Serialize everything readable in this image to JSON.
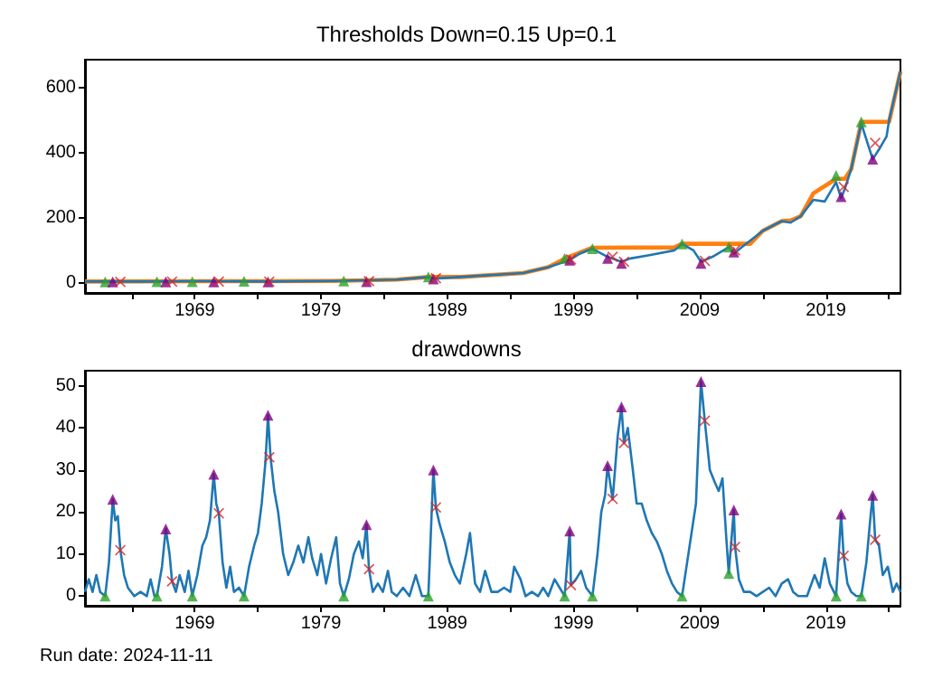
{
  "chart_data": [
    {
      "type": "line",
      "title": "Thresholds Down=0.15 Up=0.1",
      "xlim": [
        1960.3,
        2024.9
      ],
      "ylim": [
        -31,
        686
      ],
      "xticks": [
        {
          "value": 1964,
          "label": null
        },
        1969,
        {
          "value": 1974,
          "label": null
        },
        1979,
        {
          "value": 1984,
          "label": null
        },
        1989,
        {
          "value": 1994,
          "label": null
        },
        1999,
        {
          "value": 2004,
          "label": null
        },
        2009,
        {
          "value": 2014,
          "label": null
        },
        2019,
        {
          "value": 2024,
          "label": null
        }
      ],
      "yticks": [
        0,
        200,
        400,
        600
      ],
      "grid": false,
      "series": [
        {
          "color": "#1f77b4",
          "x": [
            1960.3,
            1965,
            1970,
            1975,
            1980,
            1985,
            1987.5,
            1988,
            1990,
            1995,
            1997,
            1998.7,
            1999.5,
            2000.5,
            2001.7,
            2002.8,
            2003.5,
            2005,
            2007,
            2007.6,
            2008.5,
            2009.1,
            2010,
            2011.3,
            2011.7,
            2012.5,
            2014,
            2015.5,
            2016.2,
            2017,
            2018,
            2018.9,
            2019.8,
            2020.2,
            2020.5,
            2021,
            2021.8,
            2022.7,
            2023.2,
            2023.8,
            2024,
            2024.9
          ],
          "values": [
            4,
            4,
            5,
            4,
            6,
            10,
            18,
            13,
            18,
            30,
            48,
            70,
            90,
            105,
            80,
            65,
            75,
            85,
            100,
            120,
            100,
            65,
            80,
            110,
            90,
            115,
            160,
            190,
            185,
            205,
            255,
            250,
            310,
            260,
            290,
            350,
            490,
            380,
            410,
            450,
            500,
            650
          ]
        },
        {
          "color": "#ff7f0e",
          "x": [
            1960.3,
            1970,
            1975,
            1980,
            1985,
            1987.5,
            1990,
            1995,
            1997,
            1998.5,
            2000.5,
            2007,
            2007.6,
            2013,
            2014,
            2015.5,
            2016.2,
            2017,
            2018,
            2019.8,
            2020.5,
            2021,
            2021.8,
            2024,
            2024.9
          ],
          "values": [
            4,
            5,
            5,
            6,
            10,
            18,
            18,
            30,
            48,
            78,
            108,
            109,
            120,
            120,
            160,
            190,
            192,
            205,
            275,
            320,
            320,
            350,
            495,
            495,
            650
          ]
        },
        {
          "type": "scatter",
          "color": "#2ca02c",
          "marker": "triangle",
          "x": [
            1961.9,
            1966,
            1968.8,
            1972.9,
            1980.8,
            1987.5,
            1998.3,
            2000.5,
            2007.6,
            2011.3,
            2019.8,
            2021.8
          ],
          "values": [
            3,
            4,
            4,
            5,
            6,
            18,
            75,
            105,
            120,
            110,
            330,
            495
          ]
        },
        {
          "type": "scatter",
          "color": "#800080",
          "marker": "triangle",
          "x": [
            1962.5,
            1966.7,
            1970.5,
            1974.8,
            1982.6,
            1987.9,
            1998.7,
            2001.7,
            2002.8,
            2009.1,
            2011.7,
            2020.2,
            2022.7
          ],
          "values": [
            3,
            3,
            3,
            3,
            4,
            12,
            70,
            75,
            60,
            60,
            95,
            265,
            380
          ]
        },
        {
          "type": "scatter",
          "color": "#d62728",
          "marker": "cross",
          "x": [
            1963.1,
            1967.2,
            1970.9,
            1974.9,
            1982.8,
            1988.1,
            1998.8,
            2002.1,
            2003,
            2009.4,
            2011.8,
            2020.4,
            2022.9
          ],
          "values": [
            3,
            4,
            4,
            4,
            5,
            14,
            72,
            80,
            65,
            68,
            100,
            295,
            430
          ]
        }
      ]
    },
    {
      "type": "line",
      "title": "drawdowns",
      "xlim": [
        1960.3,
        2024.9
      ],
      "ylim": [
        -2.3,
        53.6
      ],
      "xticks": [
        {
          "value": 1964,
          "label": null
        },
        1969,
        {
          "value": 1974,
          "label": null
        },
        1979,
        {
          "value": 1984,
          "label": null
        },
        1989,
        {
          "value": 1994,
          "label": null
        },
        1999,
        {
          "value": 2004,
          "label": null
        },
        2009,
        {
          "value": 2014,
          "label": null
        },
        2019,
        {
          "value": 2024,
          "label": null
        }
      ],
      "yticks": [
        0,
        10,
        20,
        30,
        40,
        50
      ],
      "grid": false,
      "annotations": [
        "Run date: 2024-11-11"
      ],
      "series": [
        {
          "color": "#1f77b4",
          "x": [
            1960.3,
            1960.6,
            1960.9,
            1961.2,
            1961.5,
            1961.9,
            1962.2,
            1962.5,
            1962.7,
            1962.9,
            1963.1,
            1963.4,
            1963.7,
            1964.2,
            1964.7,
            1965.2,
            1965.5,
            1965.8,
            1966,
            1966.4,
            1966.7,
            1967,
            1967.2,
            1967.5,
            1967.8,
            1968.2,
            1968.5,
            1968.8,
            1969.2,
            1969.6,
            1969.9,
            1970.2,
            1970.5,
            1970.7,
            1970.9,
            1971.2,
            1971.5,
            1971.8,
            1972.1,
            1972.5,
            1972.9,
            1973.3,
            1973.7,
            1974,
            1974.3,
            1974.6,
            1974.8,
            1975,
            1975.3,
            1975.6,
            1976,
            1976.4,
            1976.8,
            1977.2,
            1977.6,
            1978,
            1978.3,
            1978.7,
            1979,
            1979.4,
            1979.8,
            1980.2,
            1980.5,
            1980.8,
            1981.2,
            1981.6,
            1982,
            1982.3,
            1982.6,
            1982.8,
            1983.1,
            1983.5,
            1983.9,
            1984.3,
            1984.6,
            1985,
            1985.5,
            1986,
            1986.5,
            1987,
            1987.5,
            1987.9,
            1988.1,
            1988.4,
            1988.8,
            1989.2,
            1989.6,
            1990,
            1990.5,
            1990.8,
            1991.2,
            1991.6,
            1992,
            1992.5,
            1993,
            1993.5,
            1994,
            1994.3,
            1994.8,
            1995.2,
            1995.7,
            1996.2,
            1996.6,
            1997,
            1997.5,
            1997.9,
            1998.3,
            1998.7,
            1998.8,
            1999.2,
            1999.6,
            2000,
            2000.5,
            2000.9,
            2001.2,
            2001.5,
            2001.7,
            2002.1,
            2002.5,
            2002.8,
            2003,
            2003.3,
            2003.7,
            2004,
            2004.4,
            2004.8,
            2005.2,
            2005.6,
            2006,
            2006.4,
            2006.8,
            2007.2,
            2007.6,
            2008,
            2008.4,
            2008.7,
            2008.9,
            2009.1,
            2009.4,
            2009.8,
            2010.2,
            2010.5,
            2010.8,
            2011.1,
            2011.3,
            2011.7,
            2011.8,
            2012.1,
            2012.5,
            2013,
            2013.5,
            2014,
            2014.5,
            2015,
            2015.5,
            2016,
            2016.4,
            2016.8,
            2017.5,
            2018.1,
            2018.5,
            2018.9,
            2019.3,
            2019.8,
            2020.2,
            2020.4,
            2020.7,
            2021,
            2021.4,
            2021.8,
            2022.2,
            2022.5,
            2022.7,
            2022.9,
            2023.2,
            2023.5,
            2023.9,
            2024.3,
            2024.6,
            2024.9
          ],
          "values": [
            1,
            4,
            1,
            5,
            1,
            0,
            8,
            23,
            18,
            19,
            11,
            5,
            2,
            0,
            1,
            0,
            4,
            0,
            0,
            7,
            16,
            10,
            3.5,
            1,
            5,
            1,
            6,
            0,
            5,
            12,
            14,
            18,
            29,
            22,
            19.7,
            8,
            2,
            7,
            1,
            2,
            0,
            7,
            12,
            15,
            22,
            32,
            43,
            33,
            25,
            20,
            10,
            5,
            8,
            12,
            8,
            14,
            9,
            5,
            10,
            3,
            9,
            14,
            3,
            0,
            4,
            10,
            13,
            9,
            17,
            6.4,
            1,
            3,
            1,
            6,
            1,
            0,
            2,
            0,
            5,
            0,
            0,
            30,
            21,
            17,
            13,
            8,
            5,
            3,
            10,
            15,
            3,
            1,
            6,
            1,
            1,
            2,
            1,
            7,
            4,
            0,
            1,
            0,
            2,
            0,
            4,
            2,
            0,
            15.5,
            2.6,
            4,
            6,
            2,
            0,
            10,
            20,
            24,
            31,
            23,
            38,
            45,
            36.4,
            40,
            30,
            22,
            22,
            18,
            15,
            13,
            10,
            6,
            3,
            1,
            0,
            8,
            16,
            22,
            37,
            51,
            41.7,
            30,
            27,
            25,
            28,
            14,
            5.4,
            20.5,
            11.7,
            4,
            1,
            1,
            0,
            1,
            2,
            0,
            3,
            4,
            1,
            0,
            0,
            5,
            2,
            9,
            3,
            0,
            19.5,
            9.6,
            3,
            1,
            0,
            0,
            8,
            18,
            24,
            13.4,
            12,
            5,
            7,
            1,
            3,
            1
          ]
        },
        {
          "type": "scatter",
          "color": "#2ca02c",
          "marker": "triangle",
          "x": [
            1961.9,
            1966,
            1968.8,
            1972.9,
            1980.8,
            1987.5,
            1998.3,
            2000.5,
            2007.6,
            2011.3,
            2019.8,
            2021.8
          ],
          "values": [
            0,
            0,
            0,
            0,
            0,
            0,
            0,
            0,
            0,
            5.4,
            0,
            0
          ]
        },
        {
          "type": "scatter",
          "color": "#800080",
          "marker": "triangle",
          "x": [
            1962.5,
            1966.7,
            1970.5,
            1974.8,
            1982.6,
            1987.9,
            1998.7,
            2001.7,
            2002.8,
            2009.1,
            2011.7,
            2020.2,
            2022.7
          ],
          "values": [
            23,
            16,
            29,
            43,
            17,
            30,
            15.5,
            31,
            45,
            51,
            20.5,
            19.5,
            24
          ]
        },
        {
          "type": "scatter",
          "color": "#d62728",
          "marker": "cross",
          "x": [
            1963.1,
            1967.2,
            1970.9,
            1974.9,
            1982.8,
            1988.1,
            1998.8,
            2002.1,
            2003,
            2009.4,
            2011.8,
            2020.4,
            2022.9
          ],
          "values": [
            10.9,
            3.5,
            19.7,
            33,
            6.4,
            21.1,
            2.6,
            23.1,
            36.4,
            41.7,
            11.7,
            9.6,
            13.4
          ]
        }
      ]
    }
  ]
}
